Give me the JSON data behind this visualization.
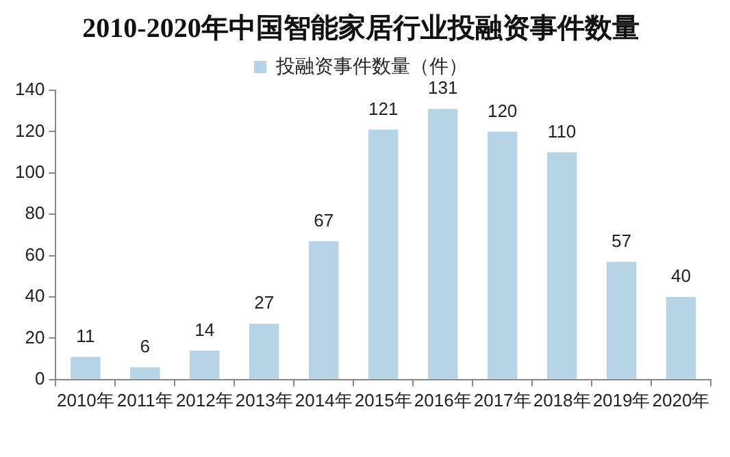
{
  "chart_data": {
    "type": "bar",
    "title": "2010-2020年中国智能家居行业投融资事件数量",
    "categories": [
      "2010年",
      "2011年",
      "2012年",
      "2013年",
      "2014年",
      "2015年",
      "2016年",
      "2017年",
      "2018年",
      "2019年",
      "2020年"
    ],
    "series": [
      {
        "name": "投融资事件数量（件）",
        "color": "#b7d3e6",
        "values": [
          11,
          6,
          14,
          27,
          67,
          121,
          131,
          120,
          110,
          57,
          40
        ]
      }
    ],
    "ylim": [
      0,
      140
    ],
    "yticks": [
      0,
      20,
      40,
      60,
      80,
      100,
      120,
      140
    ],
    "data_labels": true,
    "legend": "top"
  }
}
